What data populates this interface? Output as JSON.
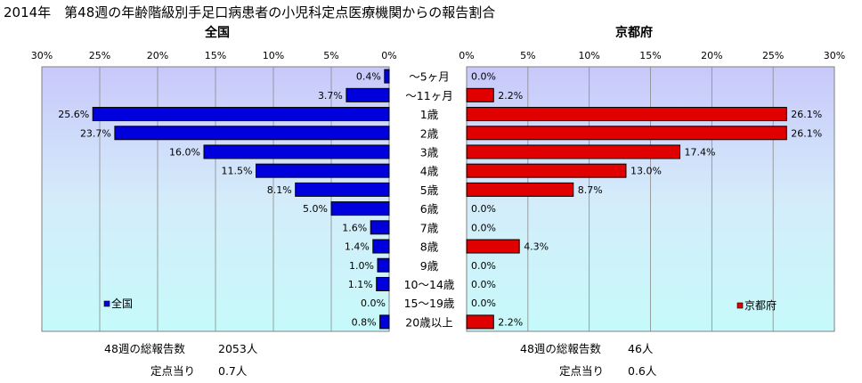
{
  "title": "2014年　第48週の年齢階級別手足口病患者の小児科定点医療機関からの報告割合",
  "chart_data": [
    {
      "type": "bar",
      "orientation": "horizontal",
      "panel": "left",
      "title": "全国",
      "legend": "全国",
      "legend_position": "bottom-left",
      "color": "#0000dd",
      "xlim": [
        0,
        30
      ],
      "x_reversed": true,
      "ticks": [
        "30%",
        "25%",
        "20%",
        "15%",
        "10%",
        "5%",
        "0%"
      ],
      "categories": [
        "～5ヶ月",
        "～11ヶ月",
        "1歳",
        "2歳",
        "3歳",
        "4歳",
        "5歳",
        "6歳",
        "7歳",
        "8歳",
        "9歳",
        "10～14歳",
        "15～19歳",
        "20歳以上"
      ],
      "values": [
        0.4,
        3.7,
        25.6,
        23.7,
        16.0,
        11.5,
        8.1,
        5.0,
        1.6,
        1.4,
        1.0,
        1.1,
        0.0,
        0.8
      ],
      "value_labels": [
        "0.4%",
        "3.7%",
        "25.6%",
        "23.7%",
        "16.0%",
        "11.5%",
        "8.1%",
        "5.0%",
        "1.6%",
        "1.4%",
        "1.0%",
        "1.1%",
        "0.0%",
        "0.8%"
      ],
      "grid": true
    },
    {
      "type": "bar",
      "orientation": "horizontal",
      "panel": "right",
      "title": "京都府",
      "legend": "京都府",
      "legend_position": "bottom-right",
      "color": "#e00000",
      "xlim": [
        0,
        30
      ],
      "x_reversed": false,
      "ticks": [
        "0%",
        "5%",
        "10%",
        "15%",
        "20%",
        "25%",
        "30%"
      ],
      "categories": [
        "～5ヶ月",
        "～11ヶ月",
        "1歳",
        "2歳",
        "3歳",
        "4歳",
        "5歳",
        "6歳",
        "7歳",
        "8歳",
        "9歳",
        "10～14歳",
        "15～19歳",
        "20歳以上"
      ],
      "values": [
        0.0,
        2.2,
        26.1,
        26.1,
        17.4,
        13.0,
        8.7,
        0.0,
        0.0,
        4.3,
        0.0,
        0.0,
        0.0,
        2.2
      ],
      "value_labels": [
        "0.0%",
        "2.2%",
        "26.1%",
        "26.1%",
        "17.4%",
        "13.0%",
        "8.7%",
        "0.0%",
        "0.0%",
        "4.3%",
        "0.0%",
        "0.0%",
        "0.0%",
        "2.2%"
      ],
      "grid": true
    }
  ],
  "footer": {
    "left": {
      "total_label": "48週の総報告数",
      "total_value": "2053人",
      "per_label": "定点当り",
      "per_value": "0.7人"
    },
    "right": {
      "total_label": "48週の総報告数",
      "total_value": "46人",
      "per_label": "定点当り",
      "per_value": "0.6人"
    }
  }
}
